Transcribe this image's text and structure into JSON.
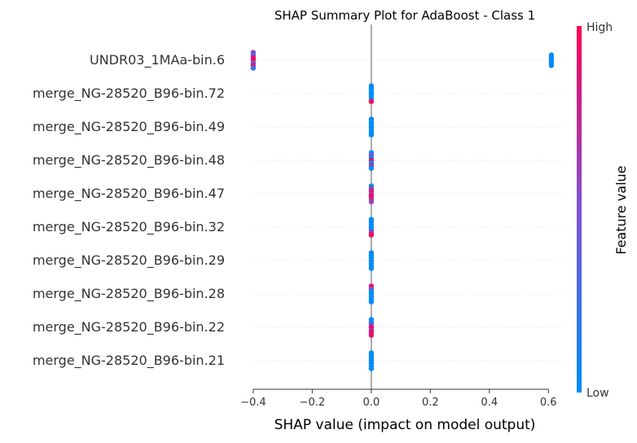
{
  "chart_data": {
    "type": "scatter",
    "title": "SHAP Summary Plot for AdaBoost - Class 1",
    "xlabel": "SHAP value (impact on model output)",
    "ylabel": "",
    "xlim": [
      -0.43,
      0.66
    ],
    "x_ticks": [
      -0.4,
      -0.2,
      0.0,
      0.2,
      0.4,
      0.6
    ],
    "x_tick_labels": [
      "−0.4",
      "−0.2",
      "0.0",
      "0.2",
      "0.4",
      "0.6"
    ],
    "zero_line": 0.0,
    "grid": false,
    "row_guides": true,
    "colorbar": {
      "label": "Feature value",
      "high_label": "High",
      "low_label": "Low",
      "low_color": "#008bfb",
      "mid_color": "#7c52d3",
      "high_color": "#ff0052"
    },
    "features": [
      {
        "name": "UNDR03_1MAa-bin.6",
        "points": [
          {
            "x": -0.4,
            "offset": -3.0,
            "v": 0.6
          },
          {
            "x": -0.4,
            "offset": -2.0,
            "v": 0.3
          },
          {
            "x": -0.4,
            "offset": -1.0,
            "v": 0.9
          },
          {
            "x": -0.4,
            "offset": 0.0,
            "v": 0.95
          },
          {
            "x": -0.4,
            "offset": 1.0,
            "v": 0.5
          },
          {
            "x": -0.4,
            "offset": 2.0,
            "v": 0.85
          },
          {
            "x": -0.4,
            "offset": 3.0,
            "v": 0.2
          },
          {
            "x": 0.61,
            "offset": -2.0,
            "v": 0.0
          },
          {
            "x": 0.61,
            "offset": -1.0,
            "v": 0.0
          },
          {
            "x": 0.61,
            "offset": 0.0,
            "v": 0.05
          },
          {
            "x": 0.61,
            "offset": 1.0,
            "v": 0.0
          },
          {
            "x": 0.61,
            "offset": 2.0,
            "v": 0.0
          }
        ]
      },
      {
        "name": "merge_NG-28520_B96-bin.72",
        "points": [
          {
            "x": 0.0,
            "offset": -3.0,
            "v": 0.0
          },
          {
            "x": 0.0,
            "offset": -2.0,
            "v": 0.0
          },
          {
            "x": 0.0,
            "offset": -1.0,
            "v": 0.0
          },
          {
            "x": 0.0,
            "offset": 0.0,
            "v": 0.0
          },
          {
            "x": 0.0,
            "offset": 1.0,
            "v": 0.0
          },
          {
            "x": 0.0,
            "offset": 2.0,
            "v": 0.0
          },
          {
            "x": 0.0,
            "offset": 3.0,
            "v": 0.95
          }
        ]
      },
      {
        "name": "merge_NG-28520_B96-bin.49",
        "points": [
          {
            "x": 0.0,
            "offset": -3.0,
            "v": 0.0
          },
          {
            "x": 0.0,
            "offset": -2.0,
            "v": 0.0
          },
          {
            "x": 0.0,
            "offset": -1.0,
            "v": 0.0
          },
          {
            "x": 0.0,
            "offset": 0.0,
            "v": 0.0
          },
          {
            "x": 0.0,
            "offset": 1.0,
            "v": 0.0
          },
          {
            "x": 0.0,
            "offset": 2.0,
            "v": 0.0
          },
          {
            "x": 0.0,
            "offset": 3.0,
            "v": 0.0
          }
        ]
      },
      {
        "name": "merge_NG-28520_B96-bin.48",
        "points": [
          {
            "x": 0.0,
            "offset": -3.0,
            "v": 0.0
          },
          {
            "x": 0.0,
            "offset": -2.0,
            "v": 0.5
          },
          {
            "x": 0.0,
            "offset": -1.0,
            "v": 0.0
          },
          {
            "x": 0.0,
            "offset": 0.0,
            "v": 0.95
          },
          {
            "x": 0.0,
            "offset": 1.0,
            "v": 0.0
          },
          {
            "x": 0.0,
            "offset": 2.0,
            "v": 0.7
          },
          {
            "x": 0.0,
            "offset": 3.0,
            "v": 0.0
          }
        ]
      },
      {
        "name": "merge_NG-28520_B96-bin.47",
        "points": [
          {
            "x": 0.0,
            "offset": -3.0,
            "v": 0.0
          },
          {
            "x": 0.0,
            "offset": -2.0,
            "v": 0.6
          },
          {
            "x": 0.0,
            "offset": -1.0,
            "v": 0.85
          },
          {
            "x": 0.0,
            "offset": 0.0,
            "v": 0.7
          },
          {
            "x": 0.0,
            "offset": 1.0,
            "v": 0.95
          },
          {
            "x": 0.0,
            "offset": 2.0,
            "v": 0.8
          },
          {
            "x": 0.0,
            "offset": 3.0,
            "v": 0.6
          }
        ]
      },
      {
        "name": "merge_NG-28520_B96-bin.32",
        "points": [
          {
            "x": 0.0,
            "offset": -3.0,
            "v": 0.0
          },
          {
            "x": 0.0,
            "offset": -2.0,
            "v": 0.0
          },
          {
            "x": 0.0,
            "offset": -1.0,
            "v": 0.0
          },
          {
            "x": 0.0,
            "offset": 0.0,
            "v": 0.0
          },
          {
            "x": 0.0,
            "offset": 1.0,
            "v": 0.0
          },
          {
            "x": 0.0,
            "offset": 2.0,
            "v": 0.7
          },
          {
            "x": 0.0,
            "offset": 3.0,
            "v": 0.95
          }
        ]
      },
      {
        "name": "merge_NG-28520_B96-bin.29",
        "points": [
          {
            "x": 0.0,
            "offset": -3.0,
            "v": 0.0
          },
          {
            "x": 0.0,
            "offset": -2.0,
            "v": 0.0
          },
          {
            "x": 0.0,
            "offset": -1.0,
            "v": 0.0
          },
          {
            "x": 0.0,
            "offset": 0.0,
            "v": 0.0
          },
          {
            "x": 0.0,
            "offset": 1.0,
            "v": 0.0
          },
          {
            "x": 0.0,
            "offset": 2.0,
            "v": 0.0
          },
          {
            "x": 0.0,
            "offset": 3.0,
            "v": 0.0
          }
        ]
      },
      {
        "name": "merge_NG-28520_B96-bin.28",
        "points": [
          {
            "x": 0.0,
            "offset": -3.0,
            "v": 0.95
          },
          {
            "x": 0.0,
            "offset": -2.0,
            "v": 0.6
          },
          {
            "x": 0.0,
            "offset": -1.0,
            "v": 0.0
          },
          {
            "x": 0.0,
            "offset": 0.0,
            "v": 0.0
          },
          {
            "x": 0.0,
            "offset": 1.0,
            "v": 0.0
          },
          {
            "x": 0.0,
            "offset": 2.0,
            "v": 0.0
          },
          {
            "x": 0.0,
            "offset": 3.0,
            "v": 0.0
          }
        ]
      },
      {
        "name": "merge_NG-28520_B96-bin.22",
        "points": [
          {
            "x": 0.0,
            "offset": -3.0,
            "v": 0.0
          },
          {
            "x": 0.0,
            "offset": -2.0,
            "v": 0.0
          },
          {
            "x": 0.0,
            "offset": -1.0,
            "v": 0.5
          },
          {
            "x": 0.0,
            "offset": 0.0,
            "v": 0.9
          },
          {
            "x": 0.0,
            "offset": 1.0,
            "v": 0.7
          },
          {
            "x": 0.0,
            "offset": 2.0,
            "v": 0.95
          },
          {
            "x": 0.0,
            "offset": 3.0,
            "v": 0.85
          }
        ]
      },
      {
        "name": "merge_NG-28520_B96-bin.21",
        "points": [
          {
            "x": 0.0,
            "offset": -3.0,
            "v": 0.0
          },
          {
            "x": 0.0,
            "offset": -2.0,
            "v": 0.0
          },
          {
            "x": 0.0,
            "offset": -1.0,
            "v": 0.0
          },
          {
            "x": 0.0,
            "offset": 0.0,
            "v": 0.0
          },
          {
            "x": 0.0,
            "offset": 1.0,
            "v": 0.0
          },
          {
            "x": 0.0,
            "offset": 2.0,
            "v": 0.0
          },
          {
            "x": 0.0,
            "offset": 3.0,
            "v": 0.0
          }
        ]
      }
    ]
  }
}
